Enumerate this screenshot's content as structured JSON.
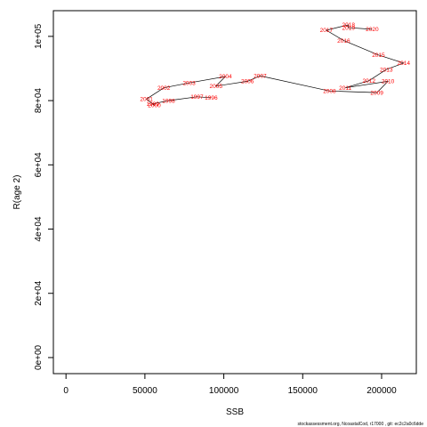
{
  "chart_data": {
    "type": "line",
    "title": "",
    "xlabel": "SSB",
    "ylabel": "R(age 2)",
    "xlim": [
      -8000,
      222000
    ],
    "ylim": [
      -5000,
      108000
    ],
    "x_ticks": [
      0,
      50000,
      100000,
      150000,
      200000
    ],
    "x_tick_labels": [
      "0",
      "50000",
      "100000",
      "150000",
      "200000"
    ],
    "y_ticks": [
      0,
      20000,
      40000,
      60000,
      80000,
      100000
    ],
    "y_tick_labels": [
      "0e+00",
      "2e+04",
      "4e+04",
      "6e+04",
      "8e+04",
      "1e+05"
    ],
    "grid": false,
    "points": [
      {
        "year": "1996",
        "x": 92000,
        "y": 80900
      },
      {
        "year": "1997",
        "x": 83000,
        "y": 81200
      },
      {
        "year": "1998",
        "x": 65000,
        "y": 80000
      },
      {
        "year": "1999",
        "x": 55000,
        "y": 79000
      },
      {
        "year": "2000",
        "x": 56000,
        "y": 78500
      },
      {
        "year": "2001",
        "x": 51000,
        "y": 80500
      },
      {
        "year": "2002",
        "x": 62000,
        "y": 84000
      },
      {
        "year": "2003",
        "x": 78000,
        "y": 85500
      },
      {
        "year": "2004",
        "x": 101000,
        "y": 87500
      },
      {
        "year": "2005",
        "x": 95000,
        "y": 84500
      },
      {
        "year": "2006",
        "x": 115000,
        "y": 86000
      },
      {
        "year": "2007",
        "x": 123000,
        "y": 87700
      },
      {
        "year": "2008",
        "x": 167000,
        "y": 83000
      },
      {
        "year": "2009",
        "x": 197000,
        "y": 82500
      },
      {
        "year": "2010",
        "x": 204000,
        "y": 86000
      },
      {
        "year": "2011",
        "x": 177000,
        "y": 84000
      },
      {
        "year": "2012",
        "x": 192000,
        "y": 86200
      },
      {
        "year": "2013",
        "x": 203000,
        "y": 89700
      },
      {
        "year": "2014",
        "x": 214000,
        "y": 91700
      },
      {
        "year": "2015",
        "x": 198000,
        "y": 94200
      },
      {
        "year": "2016",
        "x": 176000,
        "y": 98700
      },
      {
        "year": "2017",
        "x": 165000,
        "y": 101900
      },
      {
        "year": "2018",
        "x": 179000,
        "y": 103600
      },
      {
        "year": "2019",
        "x": 179000,
        "y": 102700
      },
      {
        "year": "2020",
        "x": 194000,
        "y": 102200
      }
    ],
    "footer": "stockassessment.org, NcoastalCod, r17000 , git: ec2c2a0c6dde"
  }
}
